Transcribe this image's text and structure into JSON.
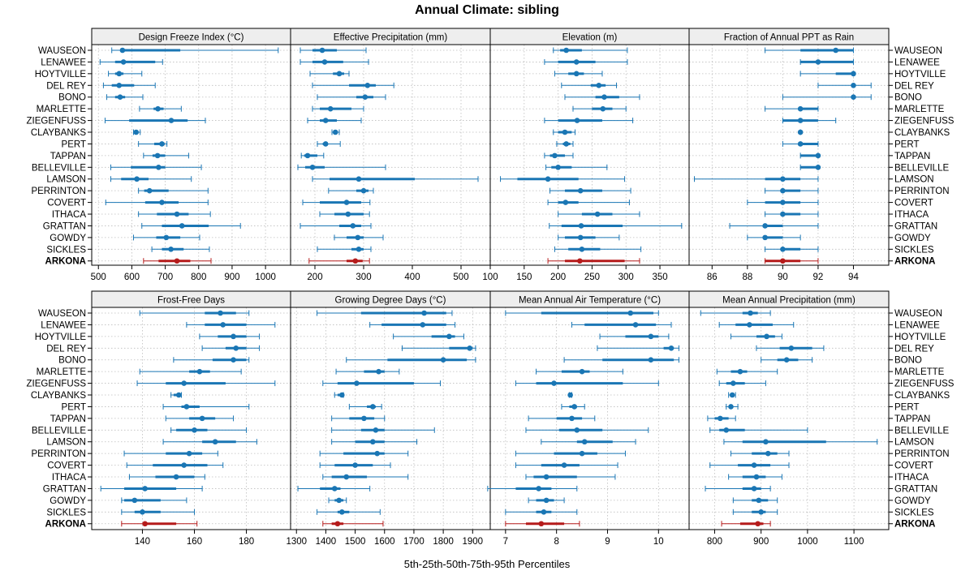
{
  "chart_data": {
    "type": "percentile-dot-plot",
    "title": "Annual Climate: sibling",
    "xlabel": "5th-25th-50th-75th-95th Percentiles",
    "stations": [
      "WAUSEON",
      "LENAWEE",
      "HOYTVILLE",
      "DEL REY",
      "BONO",
      "MARLETTE",
      "ZIEGENFUSS",
      "CLAYBANKS",
      "PERT",
      "TAPPAN",
      "BELLEVILLE",
      "LAMSON",
      "PERRINTON",
      "COVERT",
      "ITHACA",
      "GRATTAN",
      "GOWDY",
      "SICKLES",
      "ARKONA"
    ],
    "highlight_station": "ARKONA",
    "colors": {
      "series": "#1a76b4",
      "highlight": "#b51b1b",
      "grid": "#bdbdbd"
    },
    "panels": [
      {
        "name": "Design Freeze Index (°C)",
        "xlim": [
          480,
          1075
        ],
        "ticks": [
          500,
          600,
          700,
          800,
          900,
          1000
        ],
        "stats": [
          [
            540,
            568,
            572,
            745,
            1038
          ],
          [
            505,
            550,
            575,
            670,
            692
          ],
          [
            530,
            550,
            562,
            575,
            630
          ],
          [
            515,
            540,
            562,
            607,
            670
          ],
          [
            525,
            550,
            565,
            580,
            633
          ],
          [
            623,
            665,
            678,
            695,
            748
          ],
          [
            520,
            592,
            718,
            767,
            820
          ],
          [
            605,
            608,
            613,
            620,
            625
          ],
          [
            620,
            667,
            690,
            698,
            705
          ],
          [
            635,
            662,
            677,
            700,
            770
          ],
          [
            537,
            597,
            680,
            700,
            808
          ],
          [
            537,
            568,
            615,
            650,
            778
          ],
          [
            620,
            637,
            653,
            710,
            828
          ],
          [
            522,
            640,
            690,
            740,
            828
          ],
          [
            620,
            675,
            735,
            770,
            835
          ],
          [
            630,
            690,
            750,
            830,
            925
          ],
          [
            605,
            673,
            703,
            745,
            803
          ],
          [
            660,
            690,
            717,
            755,
            832
          ],
          [
            635,
            680,
            735,
            775,
            837
          ]
        ]
      },
      {
        "name": "Effective Precipitation (mm)",
        "xlim": [
          150,
          560
        ],
        "ticks": [
          200,
          300,
          400,
          500
        ],
        "stats": [
          [
            170,
            195,
            215,
            245,
            305
          ],
          [
            170,
            195,
            220,
            258,
            310
          ],
          [
            190,
            237,
            250,
            260,
            270
          ],
          [
            195,
            270,
            308,
            325,
            362
          ],
          [
            205,
            285,
            303,
            320,
            345
          ],
          [
            195,
            210,
            232,
            275,
            300
          ],
          [
            185,
            210,
            222,
            245,
            295
          ],
          [
            235,
            238,
            242,
            246,
            250
          ],
          [
            205,
            216,
            222,
            226,
            252
          ],
          [
            172,
            178,
            185,
            205,
            218
          ],
          [
            165,
            180,
            195,
            220,
            345
          ],
          [
            195,
            230,
            290,
            405,
            535
          ],
          [
            228,
            285,
            300,
            310,
            320
          ],
          [
            175,
            210,
            265,
            295,
            313
          ],
          [
            210,
            240,
            268,
            300,
            312
          ],
          [
            170,
            250,
            278,
            295,
            315
          ],
          [
            240,
            265,
            288,
            300,
            340
          ],
          [
            205,
            275,
            290,
            300,
            315
          ],
          [
            188,
            265,
            283,
            298,
            312
          ]
        ]
      },
      {
        "name": "Elevation (m)",
        "xlim": [
          100,
          393
        ],
        "ticks": [
          100,
          150,
          200,
          250,
          300,
          350
        ],
        "stats": [
          [
            193,
            203,
            212,
            235,
            302
          ],
          [
            180,
            200,
            227,
            255,
            302
          ],
          [
            195,
            215,
            227,
            238,
            265
          ],
          [
            205,
            248,
            260,
            270,
            286
          ],
          [
            210,
            255,
            268,
            290,
            320
          ],
          [
            222,
            250,
            266,
            280,
            300
          ],
          [
            180,
            200,
            228,
            265,
            310
          ],
          [
            193,
            200,
            210,
            220,
            225
          ],
          [
            198,
            207,
            212,
            218,
            222
          ],
          [
            180,
            188,
            195,
            210,
            222
          ],
          [
            182,
            190,
            200,
            220,
            272
          ],
          [
            115,
            140,
            185,
            230,
            298
          ],
          [
            188,
            210,
            233,
            265,
            307
          ],
          [
            185,
            200,
            211,
            230,
            305
          ],
          [
            200,
            235,
            258,
            280,
            320
          ],
          [
            187,
            205,
            234,
            295,
            382
          ],
          [
            200,
            210,
            233,
            255,
            290
          ],
          [
            195,
            215,
            235,
            262,
            322
          ],
          [
            185,
            210,
            232,
            298,
            320
          ]
        ]
      },
      {
        "name": "Fraction of Annual PPT as Rain",
        "xlim": [
          84.7,
          96.0
        ],
        "ticks": [
          86,
          88,
          90,
          92,
          94
        ],
        "stats": [
          [
            89,
            91,
            93,
            94,
            94
          ],
          [
            91,
            91,
            92,
            94,
            94
          ],
          [
            91,
            93,
            94,
            94,
            94
          ],
          [
            92,
            94,
            94,
            94,
            95
          ],
          [
            90,
            94,
            94,
            94,
            95
          ],
          [
            89,
            91,
            91,
            92,
            92
          ],
          [
            90,
            90,
            91,
            92,
            93
          ],
          [
            91,
            91,
            91,
            91,
            91
          ],
          [
            90,
            91,
            91,
            92,
            92
          ],
          [
            91,
            91,
            92,
            92,
            92
          ],
          [
            91,
            91,
            92,
            92,
            92
          ],
          [
            85,
            89,
            90,
            91,
            92
          ],
          [
            89,
            90,
            90,
            91,
            92
          ],
          [
            88,
            89,
            90,
            91,
            92
          ],
          [
            89,
            90,
            90,
            91,
            92
          ],
          [
            87,
            89,
            89,
            90,
            92
          ],
          [
            88,
            89,
            89,
            90,
            91
          ],
          [
            89,
            90,
            90,
            91,
            92
          ],
          [
            89,
            89,
            90,
            91,
            92
          ]
        ]
      },
      {
        "name": "Frost-Free Days",
        "xlim": [
          120.5,
          197
        ],
        "ticks": [
          140,
          160,
          180
        ],
        "stats": [
          [
            139,
            164,
            170,
            176,
            181
          ],
          [
            157,
            164,
            171,
            180,
            191
          ],
          [
            162,
            169,
            175,
            180,
            185
          ],
          [
            163,
            172,
            176,
            180,
            185
          ],
          [
            152,
            167,
            175,
            180,
            181
          ],
          [
            139,
            158,
            162,
            166,
            178
          ],
          [
            138,
            149,
            156,
            172,
            191
          ],
          [
            151,
            152,
            154,
            155,
            155
          ],
          [
            148,
            155,
            157,
            162,
            181
          ],
          [
            149,
            158,
            163,
            168,
            175
          ],
          [
            151,
            153,
            160,
            165,
            180
          ],
          [
            148,
            163,
            168,
            176,
            184
          ],
          [
            133,
            149,
            158,
            163,
            169
          ],
          [
            134,
            144,
            156,
            165,
            171
          ],
          [
            135,
            145,
            153,
            160,
            164
          ],
          [
            124,
            133,
            141,
            153,
            163
          ],
          [
            132,
            133,
            137,
            147,
            157
          ],
          [
            132,
            137,
            140,
            147,
            160
          ],
          [
            132,
            140,
            141,
            153,
            161
          ]
        ]
      },
      {
        "name": "Growing Degree Days (°C)",
        "xlim": [
          1280,
          1960
        ],
        "ticks": [
          1300,
          1400,
          1500,
          1600,
          1700,
          1800,
          1900
        ],
        "stats": [
          [
            1370,
            1520,
            1735,
            1810,
            1830
          ],
          [
            1550,
            1590,
            1730,
            1810,
            1840
          ],
          [
            1630,
            1760,
            1820,
            1840,
            1870
          ],
          [
            1660,
            1820,
            1890,
            1900,
            1910
          ],
          [
            1470,
            1610,
            1800,
            1880,
            1910
          ],
          [
            1435,
            1530,
            1580,
            1600,
            1650
          ],
          [
            1390,
            1440,
            1505,
            1700,
            1790
          ],
          [
            1430,
            1440,
            1455,
            1460,
            1460
          ],
          [
            1480,
            1540,
            1560,
            1570,
            1590
          ],
          [
            1420,
            1480,
            1530,
            1565,
            1600
          ],
          [
            1420,
            1520,
            1570,
            1600,
            1770
          ],
          [
            1420,
            1500,
            1560,
            1600,
            1710
          ],
          [
            1380,
            1460,
            1575,
            1600,
            1680
          ],
          [
            1380,
            1430,
            1500,
            1560,
            1620
          ],
          [
            1390,
            1420,
            1470,
            1540,
            1680
          ],
          [
            1305,
            1380,
            1430,
            1450,
            1550
          ],
          [
            1410,
            1430,
            1445,
            1460,
            1470
          ],
          [
            1370,
            1440,
            1455,
            1480,
            1585
          ],
          [
            1390,
            1420,
            1440,
            1460,
            1595
          ]
        ]
      },
      {
        "name": "Mean Annual Air Temperature (°C)",
        "xlim": [
          6.7,
          10.6
        ],
        "ticks": [
          7,
          8,
          9,
          10
        ],
        "stats": [
          [
            7.0,
            7.7,
            9.45,
            9.9,
            10.0
          ],
          [
            8.3,
            8.55,
            9.55,
            9.95,
            10.25
          ],
          [
            8.85,
            9.35,
            9.85,
            10.0,
            10.2
          ],
          [
            8.8,
            10.1,
            10.25,
            10.3,
            10.4
          ],
          [
            8.15,
            8.9,
            9.85,
            10.3,
            10.4
          ],
          [
            7.6,
            8.1,
            8.5,
            8.65,
            9.3
          ],
          [
            7.2,
            7.6,
            7.95,
            9.3,
            10.0
          ],
          [
            8.25,
            8.25,
            8.27,
            8.3,
            8.3
          ],
          [
            8.1,
            8.25,
            8.35,
            8.4,
            8.55
          ],
          [
            7.45,
            8.0,
            8.3,
            8.5,
            8.75
          ],
          [
            7.4,
            8.05,
            8.4,
            8.9,
            9.8
          ],
          [
            7.7,
            8.4,
            8.55,
            9.1,
            9.55
          ],
          [
            7.2,
            7.95,
            8.5,
            8.8,
            9.35
          ],
          [
            7.2,
            7.7,
            8.15,
            8.45,
            9.2
          ],
          [
            7.4,
            7.55,
            7.8,
            8.4,
            9.15
          ],
          [
            6.65,
            7.2,
            7.65,
            7.9,
            8.4
          ],
          [
            7.45,
            7.6,
            7.8,
            7.95,
            8.15
          ],
          [
            7.0,
            7.6,
            7.75,
            7.9,
            8.4
          ],
          [
            7.0,
            7.4,
            7.7,
            8.15,
            8.45
          ]
        ]
      },
      {
        "name": "Mean Annual Precipitation (mm)",
        "xlim": [
          745,
          1175
        ],
        "ticks": [
          800,
          900,
          1000,
          1100
        ],
        "stats": [
          [
            770,
            860,
            877,
            893,
            920
          ],
          [
            810,
            845,
            875,
            925,
            970
          ],
          [
            835,
            890,
            912,
            930,
            945
          ],
          [
            890,
            940,
            965,
            1010,
            1035
          ],
          [
            900,
            935,
            955,
            980,
            1010
          ],
          [
            805,
            835,
            855,
            870,
            935
          ],
          [
            810,
            825,
            840,
            865,
            910
          ],
          [
            830,
            833,
            838,
            842,
            845
          ],
          [
            825,
            830,
            835,
            840,
            850
          ],
          [
            785,
            800,
            812,
            830,
            845
          ],
          [
            790,
            810,
            825,
            865,
            1000
          ],
          [
            820,
            860,
            910,
            1040,
            1150
          ],
          [
            835,
            880,
            915,
            935,
            960
          ],
          [
            790,
            850,
            885,
            920,
            960
          ],
          [
            830,
            860,
            890,
            910,
            945
          ],
          [
            780,
            860,
            885,
            900,
            920
          ],
          [
            840,
            880,
            895,
            915,
            935
          ],
          [
            840,
            880,
            900,
            910,
            935
          ],
          [
            815,
            855,
            893,
            905,
            920
          ]
        ]
      }
    ]
  }
}
